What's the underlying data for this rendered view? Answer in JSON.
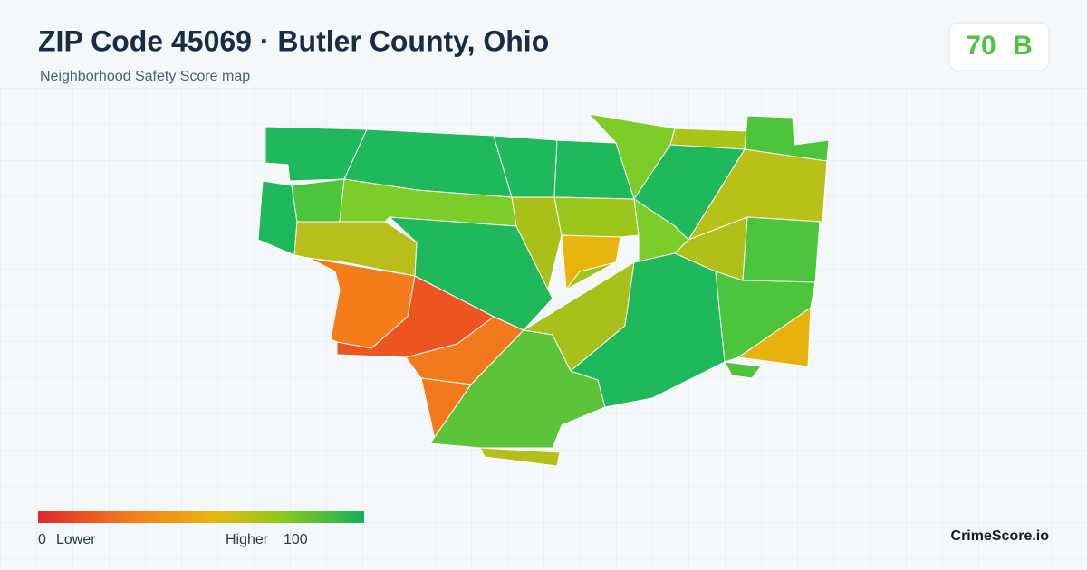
{
  "header": {
    "title": "ZIP Code 45069 · Butler County, Ohio",
    "subtitle": "Neighborhood Safety Score map"
  },
  "score": {
    "value": 70,
    "grade": "B"
  },
  "legend": {
    "min": 0,
    "min_label": "Lower",
    "max_label": "Higher",
    "max": 100
  },
  "brand": "CrimeScore.io"
}
